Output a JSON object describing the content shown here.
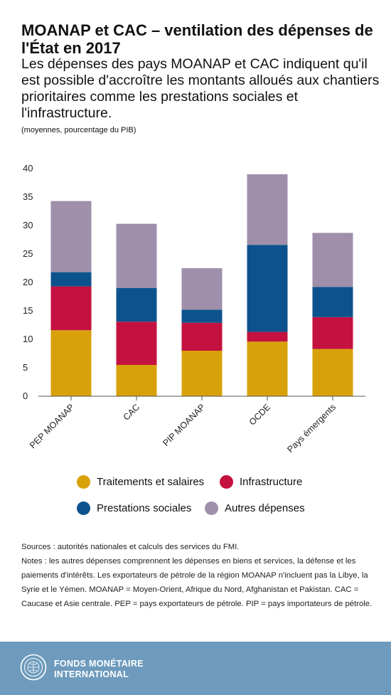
{
  "header": {
    "title": "MOANAP et CAC – ventilation des dépenses de l'État en 2017",
    "subtitle": "Les dépenses des pays MOANAP et CAC indiquent qu'il est possible d'accroître les montants alloués aux chantiers prioritaires comme les prestations sociales et l'infrastructure.",
    "unit": "(moyennes, pourcentage du PIB)"
  },
  "chart_data": {
    "type": "bar",
    "stacked": true,
    "categories": [
      "PEP MOANAP",
      "CAC",
      "PIP MOANAP",
      "OCDE",
      "Pays émergents"
    ],
    "series": [
      {
        "name": "Traitements et salaires",
        "color": "#d8a10a",
        "values": [
          11.6,
          5.5,
          8.0,
          9.6,
          8.3
        ]
      },
      {
        "name": "Infrastructure",
        "color": "#c4113f",
        "values": [
          7.7,
          7.6,
          4.9,
          1.7,
          5.6
        ]
      },
      {
        "name": "Prestations sociales",
        "color": "#0c538d",
        "values": [
          2.5,
          5.9,
          2.3,
          15.3,
          5.3
        ]
      },
      {
        "name": "Autres dépenses",
        "color": "#9f8fab",
        "values": [
          12.5,
          11.3,
          7.3,
          12.4,
          9.5
        ]
      }
    ],
    "yticks": [
      0,
      5,
      10,
      15,
      20,
      25,
      30,
      35,
      40
    ],
    "ylim": [
      0,
      41
    ],
    "grid": false,
    "legend_position": "bottom"
  },
  "notes": {
    "sources": "Sources : autorités nationales et calculs des services du FMI.",
    "text": "Notes : les autres dépenses comprennent les dépenses en biens et services, la défense et les paiements d'intérêts. Les exportateurs de pétrole de la région MOANAP n'incluent pas la Libye, la Syrie et le Yémen. MOANAP = Moyen-Orient, Afrique du Nord, Afghanistan et Pakistan. CAC = Caucase et Asie centrale. PEP = pays exportateurs de pétrole. PIP = pays importateurs de pétrole."
  },
  "footer": {
    "org_line1": "FONDS MONÉTAIRE",
    "org_line2": "INTERNATIONAL",
    "background": "#6e9bbd"
  }
}
